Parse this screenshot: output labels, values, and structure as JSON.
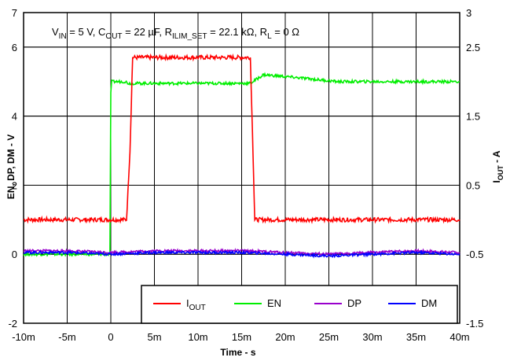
{
  "chart_data": {
    "type": "line",
    "annotation": {
      "parts": [
        "V",
        "IN",
        " = 5 V, C",
        "OUT",
        " = 22 µF, R",
        "ILIM_SET",
        " = 22.1 kΩ, R",
        "L",
        " = 0 Ω"
      ]
    },
    "xlabel": "Time - s",
    "ylabel_left": "EN, DP, DM - V",
    "ylabel_right": {
      "main": "I",
      "sub": "OUT",
      "suffix": " - A"
    },
    "xlim": [
      -0.01,
      0.04
    ],
    "ylim_left": [
      -2,
      7
    ],
    "ylim_right": [
      -1.5,
      3
    ],
    "x_ticks": [
      -0.01,
      -0.005,
      0,
      0.005,
      0.01,
      0.015,
      0.02,
      0.025,
      0.03,
      0.035,
      0.04
    ],
    "x_tick_labels": [
      "-10m",
      "-5m",
      "0",
      "5m",
      "10m",
      "15m",
      "20m",
      "25m",
      "30m",
      "35m",
      "40m"
    ],
    "y_left_ticks": [
      -2,
      0,
      2,
      4,
      6,
      7
    ],
    "y_left_tick_labels": [
      "-2",
      "0",
      "2",
      "4",
      "6",
      "7"
    ],
    "y_right_ticks": [
      -1.5,
      -0.5,
      0.5,
      1.5,
      2.5,
      3
    ],
    "y_right_tick_labels": [
      "-1.5",
      "-0.5",
      "0.5",
      "1.5",
      "2.5",
      "3"
    ],
    "grid": true,
    "legend_position": "bottom-right",
    "series": [
      {
        "name": "IOUT",
        "name_main": "I",
        "name_sub": "OUT",
        "color": "#ff0000",
        "axis": "left",
        "x": [
          -0.01,
          0.0018,
          0.0022,
          0.0025,
          0.016,
          0.0163,
          0.0165,
          0.04
        ],
        "y": [
          1.0,
          1.0,
          3.0,
          5.7,
          5.7,
          3.0,
          1.0,
          1.0
        ]
      },
      {
        "name": "EN",
        "color": "#00ee00",
        "axis": "left",
        "x": [
          -0.01,
          -0.0001,
          0.0,
          0.0001,
          0.0017,
          0.002,
          0.016,
          0.0175,
          0.022,
          0.026,
          0.04
        ],
        "y": [
          0.0,
          0.0,
          4.7,
          5.0,
          5.0,
          4.95,
          4.95,
          5.2,
          5.1,
          5.0,
          5.0
        ]
      },
      {
        "name": "DP",
        "color": "#9900cc",
        "axis": "left",
        "x": [
          -0.01,
          -0.005,
          0.0,
          0.005,
          0.01,
          0.015,
          0.02,
          0.025,
          0.03,
          0.035,
          0.04
        ],
        "y": [
          0.1,
          0.1,
          0.05,
          0.1,
          0.1,
          0.1,
          0.05,
          0.0,
          0.05,
          0.1,
          0.05
        ]
      },
      {
        "name": "DM",
        "color": "#0000ff",
        "axis": "left",
        "x": [
          -0.01,
          -0.005,
          0.0,
          0.005,
          0.01,
          0.015,
          0.02,
          0.025,
          0.03,
          0.035,
          0.04
        ],
        "y": [
          0.05,
          0.05,
          0.0,
          0.05,
          0.05,
          0.05,
          0.0,
          -0.05,
          0.0,
          0.05,
          0.0
        ]
      }
    ]
  }
}
